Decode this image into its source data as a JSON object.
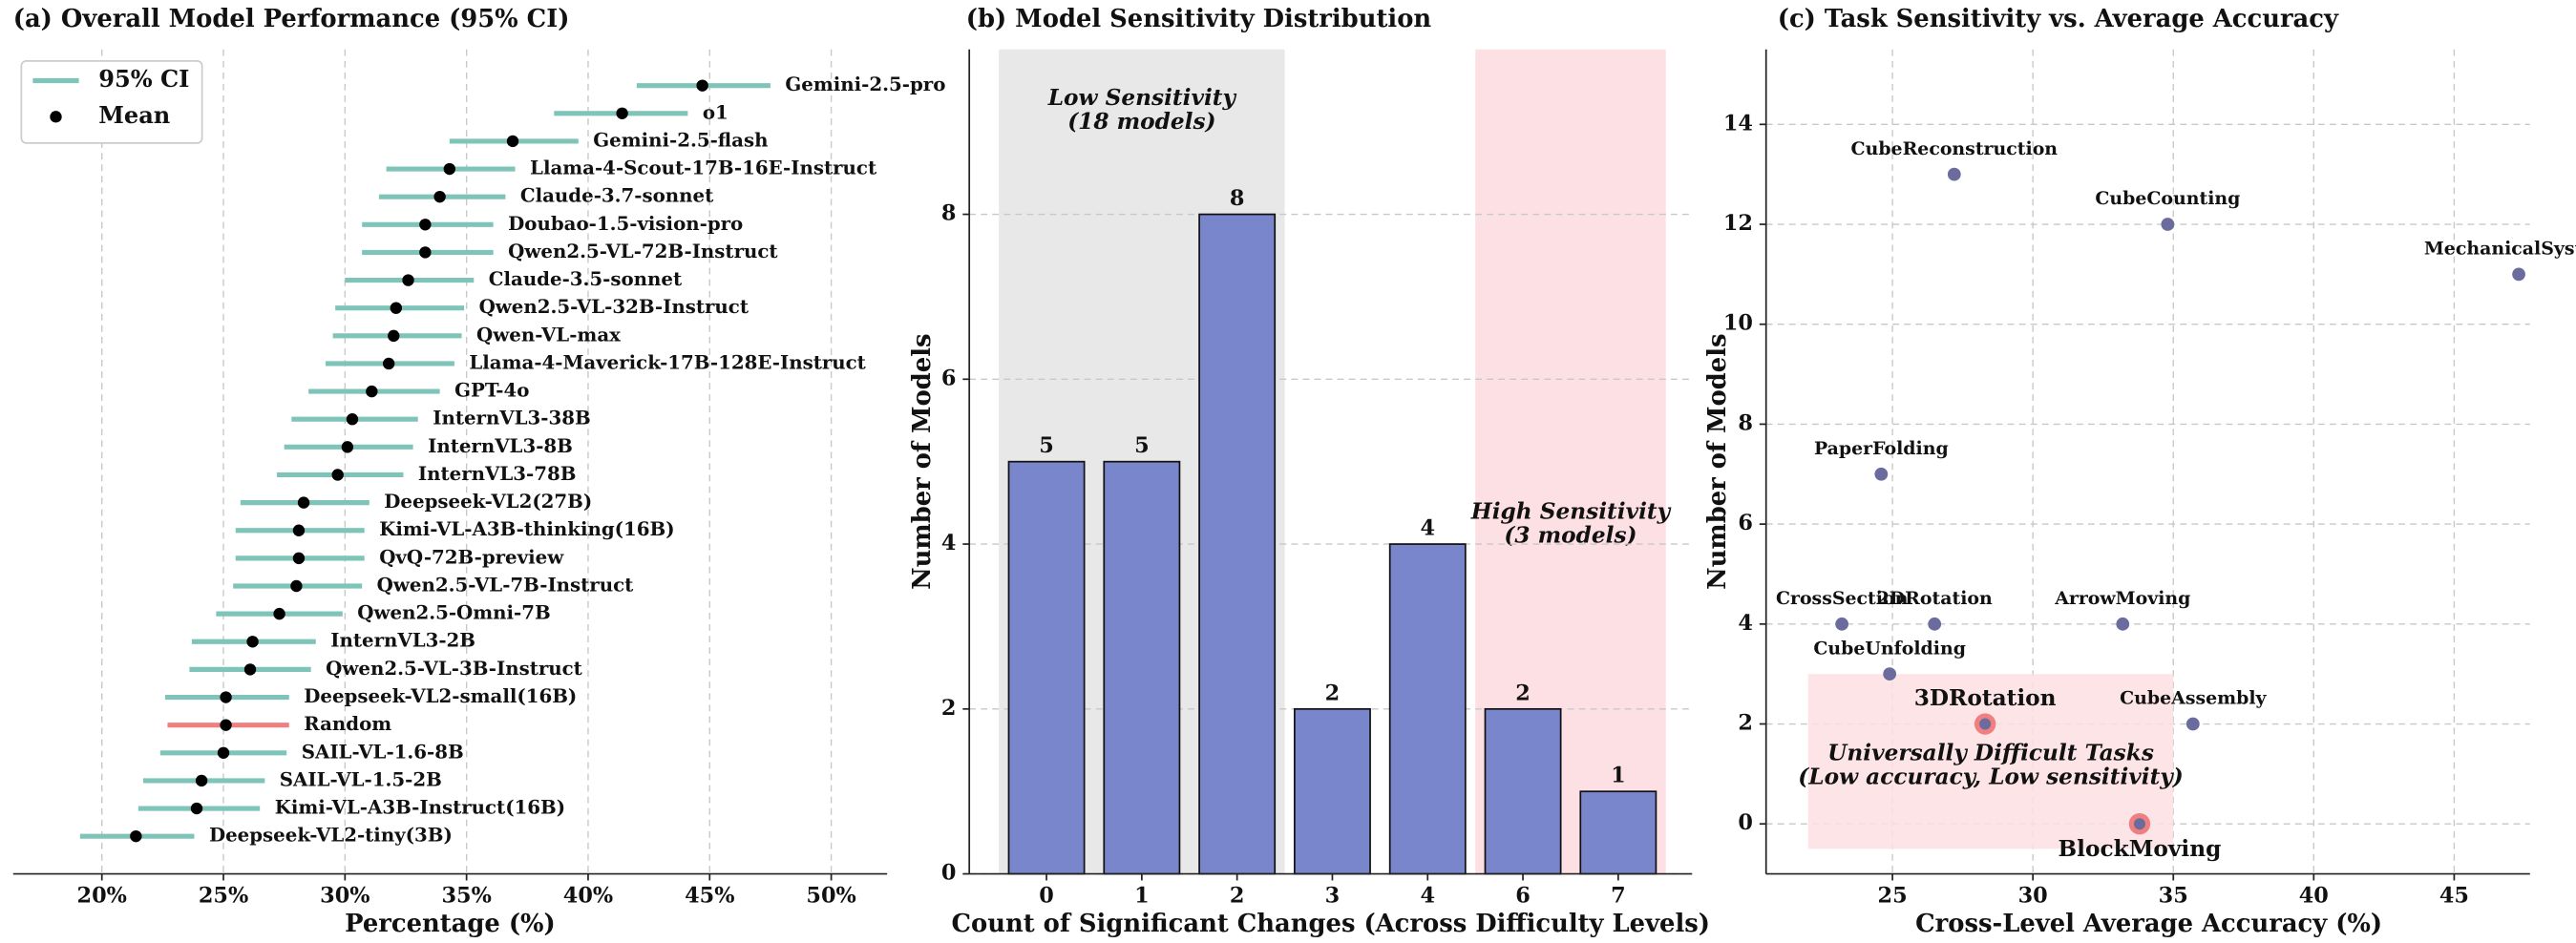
{
  "chart_data": [
    {
      "type": "forest",
      "title": "(a) Overall Model Performance (95% CI)",
      "xlabel": "Percentage (%)",
      "legend": [
        "95% CI",
        "Mean"
      ],
      "legend_corner": "upper left",
      "grid": true,
      "categories": [
        "Gemini-2.5-pro",
        "o1",
        "Gemini-2.5-flash",
        "Llama-4-Scout-17B-16E-Instruct",
        "Claude-3.7-sonnet",
        "Doubao-1.5-vision-pro",
        "Qwen2.5-VL-72B-Instruct",
        "Claude-3.5-sonnet",
        "Qwen2.5-VL-32B-Instruct",
        "Qwen-VL-max",
        "Llama-4-Maverick-17B-128E-Instruct",
        "GPT-4o",
        "InternVL3-38B",
        "InternVL3-8B",
        "InternVL3-78B",
        "Deepseek-VL2(27B)",
        "Kimi-VL-A3B-thinking(16B)",
        "QvQ-72B-preview",
        "Qwen2.5-VL-7B-Instruct",
        "Qwen2.5-Omni-7B",
        "InternVL3-2B",
        "Qwen2.5-VL-3B-Instruct",
        "Deepseek-VL2-small(16B)",
        "Random",
        "SAIL-VL-1.6-8B",
        "SAIL-VL-1.5-2B",
        "Kimi-VL-A3B-Instruct(16B)",
        "Deepseek-VL2-tiny(3B)"
      ],
      "values": [
        44.7,
        41.4,
        36.9,
        34.3,
        33.9,
        33.3,
        33.3,
        32.6,
        32.1,
        32.0,
        31.8,
        31.1,
        30.3,
        30.1,
        29.7,
        28.3,
        28.1,
        28.1,
        28.0,
        27.3,
        26.2,
        26.1,
        25.1,
        25.1,
        25.0,
        24.1,
        23.9,
        21.4
      ],
      "lower": [
        42.0,
        38.6,
        34.3,
        31.7,
        31.4,
        30.7,
        30.7,
        30.0,
        29.6,
        29.5,
        29.2,
        28.5,
        27.8,
        27.5,
        27.2,
        25.7,
        25.5,
        25.5,
        25.4,
        24.7,
        23.7,
        23.6,
        22.6,
        22.7,
        22.4,
        21.7,
        21.5,
        19.1
      ],
      "upper": [
        47.5,
        44.1,
        39.6,
        37.0,
        36.6,
        36.1,
        36.1,
        35.3,
        34.9,
        34.8,
        34.5,
        33.9,
        33.0,
        32.8,
        32.4,
        31.0,
        30.8,
        30.8,
        30.7,
        29.9,
        28.8,
        28.6,
        27.7,
        27.7,
        27.6,
        26.7,
        26.5,
        23.8
      ],
      "ci_color": "#7fc4b8",
      "mean_color": "#000000",
      "highlight_color": "#f08080",
      "highlight_label_color": "#e53935",
      "highlight_index": 23,
      "xlim": [
        16.35,
        52.3
      ],
      "xticks": [
        {
          "value": 20,
          "label": "20%"
        },
        {
          "value": 25,
          "label": "25%"
        },
        {
          "value": 30,
          "label": "30%"
        },
        {
          "value": 35,
          "label": "35%"
        },
        {
          "value": 40,
          "label": "40%"
        },
        {
          "value": 45,
          "label": "45%"
        },
        {
          "value": 50,
          "label": "50%"
        }
      ]
    },
    {
      "type": "bar",
      "title": "(b) Model Sensitivity Distribution",
      "xlabel": "Count of Significant Changes (Across Difficulty Levels)",
      "ylabel": "Number of Models",
      "categories": [
        "0",
        "1",
        "2",
        "3",
        "4",
        "6",
        "7"
      ],
      "values": [
        5,
        5,
        8,
        2,
        4,
        2,
        1
      ],
      "color": "#7986cb",
      "ylim": [
        0,
        10
      ],
      "yticks": [
        0,
        2,
        4,
        6,
        8
      ],
      "grid": true,
      "regions": [
        {
          "span": [
            0,
            2
          ],
          "color": "#e8e8e8",
          "text": [
            "Low Sensitivity",
            "(18 models)"
          ]
        },
        {
          "span": [
            5,
            6
          ],
          "color": "#fde0e3",
          "text": [
            "High Sensitivity",
            "(3 models)"
          ]
        }
      ]
    },
    {
      "type": "scatter",
      "title": "(c) Task Sensitivity vs. Average Accuracy",
      "xlabel": "Cross-Level Average Accuracy (%)",
      "ylabel": "Number of Models",
      "labels": [
        "CubeReconstruction",
        "CubeCounting",
        "MechanicalSystem",
        "PaperFolding",
        "CrossSection",
        "2DRotation",
        "ArrowMoving",
        "CubeUnfolding",
        "3DRotation",
        "CubeAssembly",
        "BlockMoving"
      ],
      "x": [
        27.2,
        34.8,
        47.3,
        24.6,
        23.2,
        26.5,
        33.2,
        24.9,
        28.3,
        35.7,
        33.8
      ],
      "y": [
        13,
        12,
        11,
        7,
        4,
        4,
        4,
        3,
        2,
        2,
        0
      ],
      "colors": [
        "#6b6b9e",
        "#6b6b9e",
        "#6b6b9e",
        "#6b6b9e",
        "#6b6b9e",
        "#6b6b9e",
        "#6b6b9e",
        "#6b6b9e",
        "#e53935",
        "#6b6b9e",
        "#e53935"
      ],
      "xlim": [
        20.5,
        47.7
      ],
      "ylim": [
        -1,
        15.5
      ],
      "xticks": [
        25,
        30,
        35,
        40,
        45
      ],
      "yticks": [
        0,
        2,
        4,
        6,
        8,
        10,
        12,
        14
      ],
      "grid": true,
      "region": {
        "xlim": [
          22,
          35
        ],
        "ylim": [
          -0.5,
          3
        ],
        "color": "#fde0e3",
        "text": [
          "Universally Difficult Tasks",
          "(Low accuracy, Low sensitivity)"
        ]
      }
    }
  ]
}
